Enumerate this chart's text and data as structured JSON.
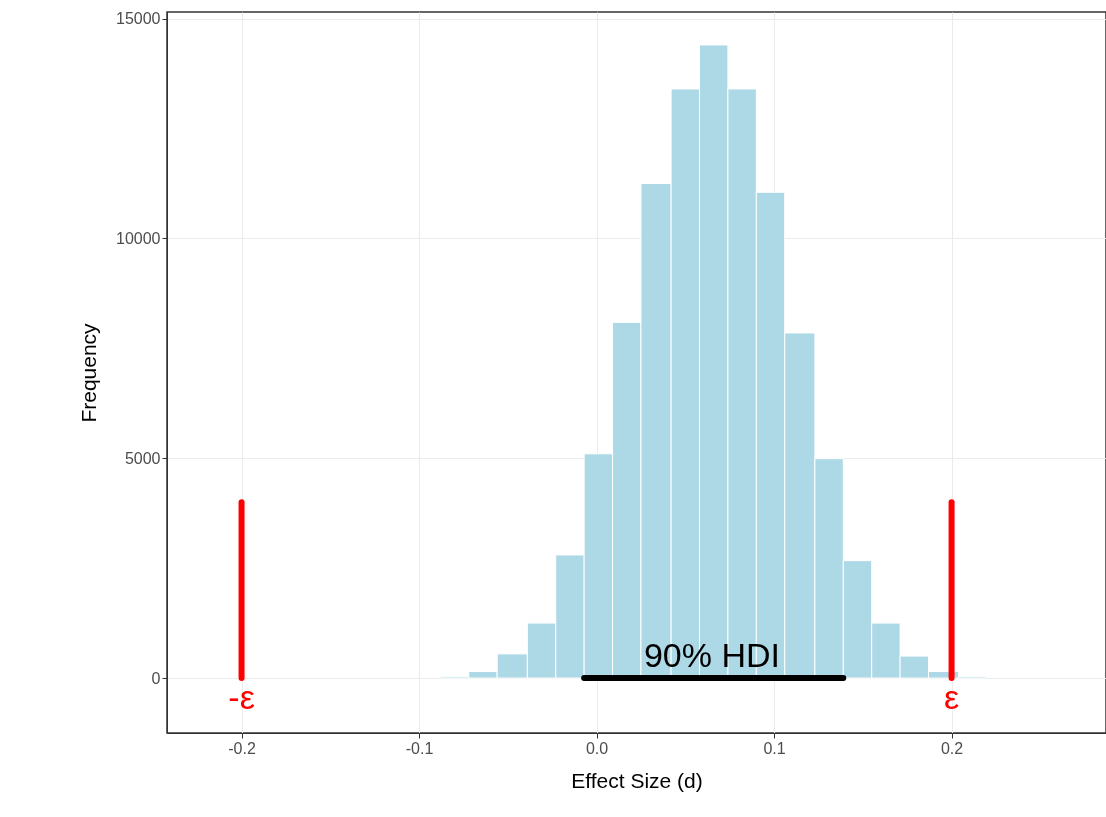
{
  "chart_data": {
    "type": "histogram",
    "xlabel": "Effect Size (d)",
    "ylabel": "Frequency",
    "bins": [
      -0.088,
      -0.072,
      -0.056,
      -0.039,
      -0.023,
      -0.007,
      0.009,
      0.025,
      0.042,
      0.058,
      0.074,
      0.09,
      0.106,
      0.123,
      0.139,
      0.155,
      0.171,
      0.187,
      0.204,
      0.22
    ],
    "values": [
      30,
      150,
      550,
      1250,
      2800,
      5100,
      8090,
      11250,
      13400,
      14400,
      13400,
      11050,
      7850,
      4990,
      2670,
      1250,
      500,
      150,
      30
    ],
    "color": "#add8e6",
    "series": [
      {
        "type": "line",
        "color": "#ff0000",
        "x": [
          -0.2,
          -0.2
        ],
        "values": [
          0,
          4000
        ]
      },
      {
        "type": "line",
        "color": "#ff0000",
        "x": [
          0.2,
          0.2
        ],
        "values": [
          0,
          4000
        ]
      },
      {
        "type": "line",
        "color": "#000000",
        "x": [
          -0.007,
          0.139
        ],
        "values": [
          0,
          0
        ]
      }
    ],
    "annotations": [
      {
        "text": "-ε",
        "x": -0.2,
        "y": 0
      },
      {
        "text": "ε",
        "x": 0.2,
        "y": 0
      },
      {
        "text": "90% HDI",
        "x": 0.065,
        "y": 0
      }
    ],
    "xlim": [
      -0.242,
      0.287
    ],
    "xticks": [
      -0.2,
      -0.1,
      {
        "value": 0,
        "label": "0.0"
      },
      0.1,
      0.2
    ],
    "ylim": [
      -1250,
      15150
    ],
    "yticks": [
      0,
      5000,
      10000,
      15000
    ],
    "grid": true
  }
}
